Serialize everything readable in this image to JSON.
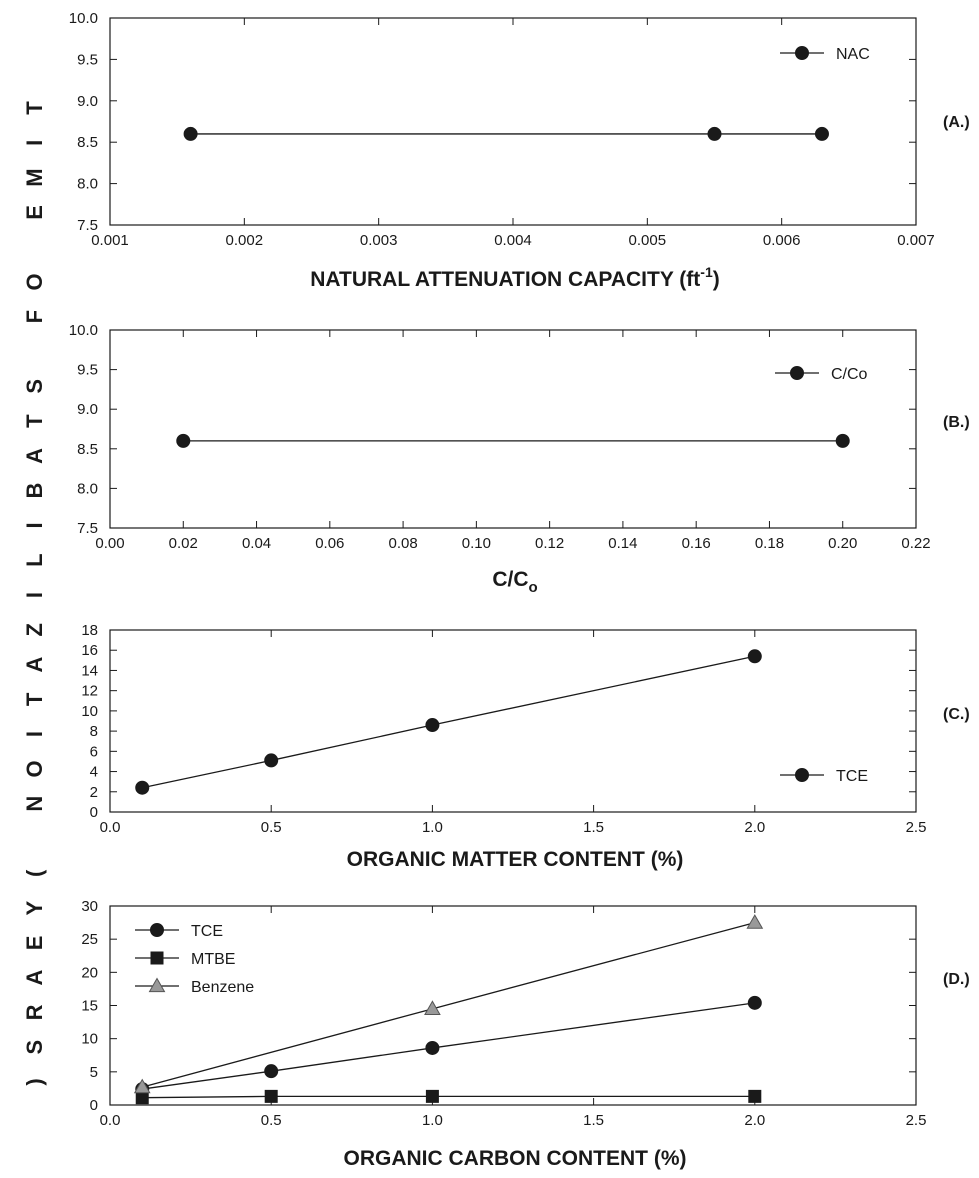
{
  "figure": {
    "shared_ylabel": "TIME OF STABILIZATION (YEARS)"
  },
  "chart_data": [
    {
      "type": "line",
      "panel_tag": "(A.)",
      "xlabel": "NATURAL ATTENUATION CAPACITY (ft",
      "xlabel_sup": "-1",
      "xlabel_end": ")",
      "xlim": [
        0.001,
        0.007
      ],
      "ylim": [
        7.5,
        10.0
      ],
      "xticks": [
        "0.001",
        "0.002",
        "0.003",
        "0.004",
        "0.005",
        "0.006",
        "0.007"
      ],
      "yticks": [
        "7.5",
        "8.0",
        "8.5",
        "9.0",
        "9.5",
        "10.0"
      ],
      "legend_position": "top-right",
      "series": [
        {
          "name": "NAC",
          "marker": "circle",
          "color": "#1a1a1a",
          "x": [
            0.0016,
            0.0055,
            0.0063
          ],
          "y": [
            8.6,
            8.6,
            8.6
          ]
        }
      ]
    },
    {
      "type": "line",
      "panel_tag": "(B.)",
      "xlabel": "C/C",
      "xlabel_sub": "o",
      "xlim": [
        0.0,
        0.22
      ],
      "ylim": [
        7.5,
        10.0
      ],
      "xticks": [
        "0.00",
        "0.02",
        "0.04",
        "0.06",
        "0.08",
        "0.10",
        "0.12",
        "0.14",
        "0.16",
        "0.18",
        "0.20",
        "0.22"
      ],
      "yticks": [
        "7.5",
        "8.0",
        "8.5",
        "9.0",
        "9.5",
        "10.0"
      ],
      "legend_position": "top-right",
      "series": [
        {
          "name": "C/Co",
          "marker": "circle",
          "color": "#1a1a1a",
          "x": [
            0.02,
            0.2
          ],
          "y": [
            8.6,
            8.6
          ]
        }
      ]
    },
    {
      "type": "line",
      "panel_tag": "(C.)",
      "xlabel": "ORGANIC MATTER CONTENT (%)",
      "xlim": [
        0.0,
        2.5
      ],
      "ylim": [
        0,
        18
      ],
      "xticks": [
        "0.0",
        "0.5",
        "1.0",
        "1.5",
        "2.0",
        "2.5"
      ],
      "yticks": [
        "0",
        "2",
        "4",
        "6",
        "8",
        "10",
        "12",
        "14",
        "16",
        "18"
      ],
      "legend_position": "bottom-right",
      "series": [
        {
          "name": "TCE",
          "marker": "circle",
          "color": "#1a1a1a",
          "x": [
            0.1,
            0.5,
            1.0,
            2.0
          ],
          "y": [
            2.4,
            5.1,
            8.6,
            15.4
          ]
        }
      ]
    },
    {
      "type": "line",
      "panel_tag": "(D.)",
      "xlabel": "ORGANIC CARBON CONTENT (%)",
      "xlim": [
        0.0,
        2.5
      ],
      "ylim": [
        0,
        30
      ],
      "xticks": [
        "0.0",
        "0.5",
        "1.0",
        "1.5",
        "2.0",
        "2.5"
      ],
      "yticks": [
        "0",
        "5",
        "10",
        "15",
        "20",
        "25",
        "30"
      ],
      "legend_position": "top-left",
      "series": [
        {
          "name": "TCE",
          "marker": "circle",
          "color": "#1a1a1a",
          "x": [
            0.1,
            0.5,
            1.0,
            2.0
          ],
          "y": [
            2.4,
            5.1,
            8.6,
            15.4
          ]
        },
        {
          "name": "MTBE",
          "marker": "square",
          "color": "#1a1a1a",
          "x": [
            0.1,
            0.5,
            1.0,
            2.0
          ],
          "y": [
            1.1,
            1.3,
            1.3,
            1.3
          ]
        },
        {
          "name": "Benzene",
          "marker": "triangle",
          "color": "#999999",
          "x": [
            0.1,
            1.0,
            2.0
          ],
          "y": [
            2.7,
            14.5,
            27.5
          ]
        }
      ]
    }
  ]
}
